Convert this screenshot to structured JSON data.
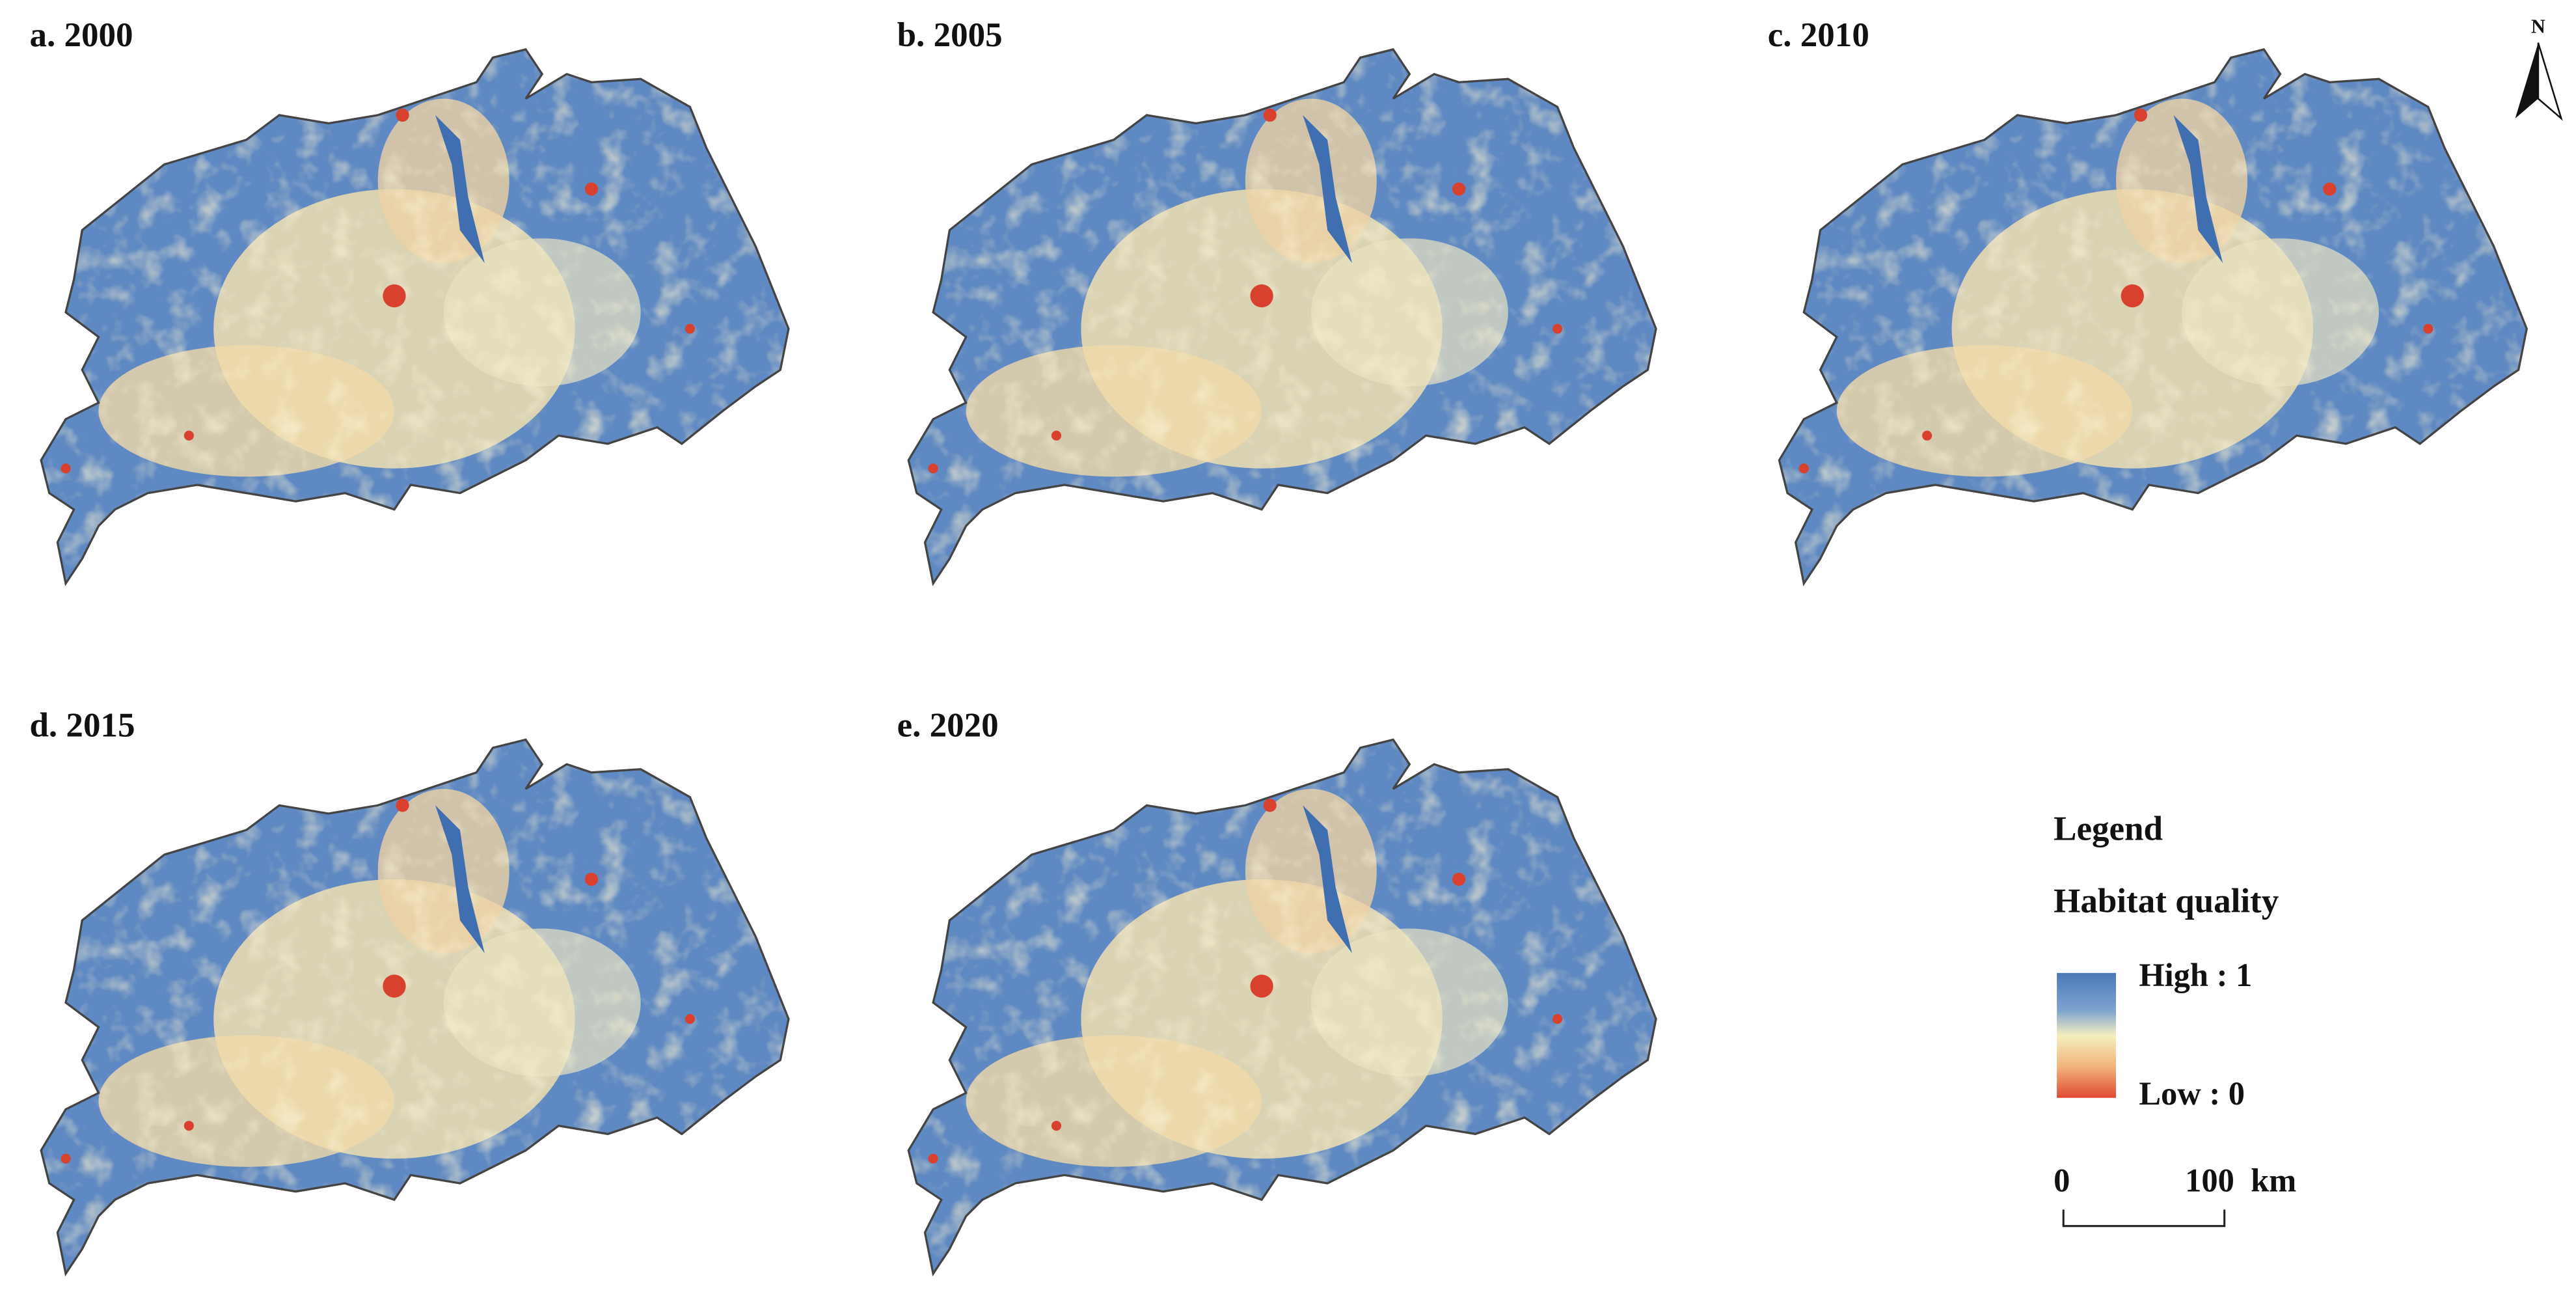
{
  "panels": [
    {
      "label": "a. 2000"
    },
    {
      "label": "b. 2005"
    },
    {
      "label": "c. 2010"
    },
    {
      "label": "d. 2015"
    },
    {
      "label": "e. 2020"
    }
  ],
  "legend": {
    "title": "Legend",
    "subtitle": "Habitat quality",
    "high": "High : 1",
    "low": "Low : 0"
  },
  "scale_bar": {
    "start": 0,
    "end": 100,
    "unit": "km"
  },
  "north_arrow": "N"
}
